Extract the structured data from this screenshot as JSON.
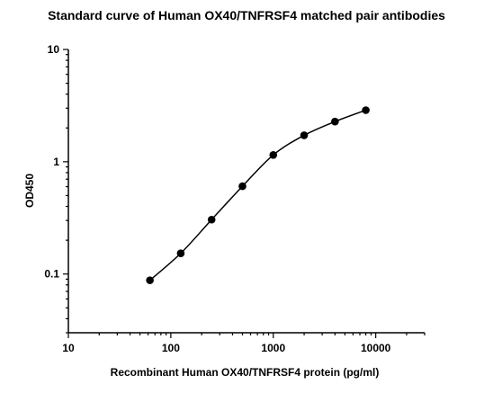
{
  "chart_data": {
    "type": "scatter",
    "title": "Standard curve of Human OX40/TNFRSF4 matched pair antibodies",
    "xlabel": "Recombinant Human OX40/TNFRSF4 protein (pg/ml)",
    "ylabel": "OD450",
    "x_scale": "log",
    "y_scale": "log",
    "xlim": [
      10,
      30000
    ],
    "ylim": [
      0.03,
      10
    ],
    "x_ticks": [
      10,
      100,
      1000,
      10000
    ],
    "x_tick_labels": [
      "10",
      "100",
      "1000",
      "10000"
    ],
    "y_ticks": [
      0.1,
      1,
      10
    ],
    "y_tick_labels": [
      "0.1",
      "1",
      "10"
    ],
    "grid": false,
    "series": [
      {
        "x": [
          62.5,
          125,
          250,
          500,
          1000,
          2000,
          4000,
          8000
        ],
        "y": [
          0.088,
          0.153,
          0.305,
          0.605,
          1.15,
          1.72,
          2.28,
          2.88
        ]
      }
    ]
  }
}
